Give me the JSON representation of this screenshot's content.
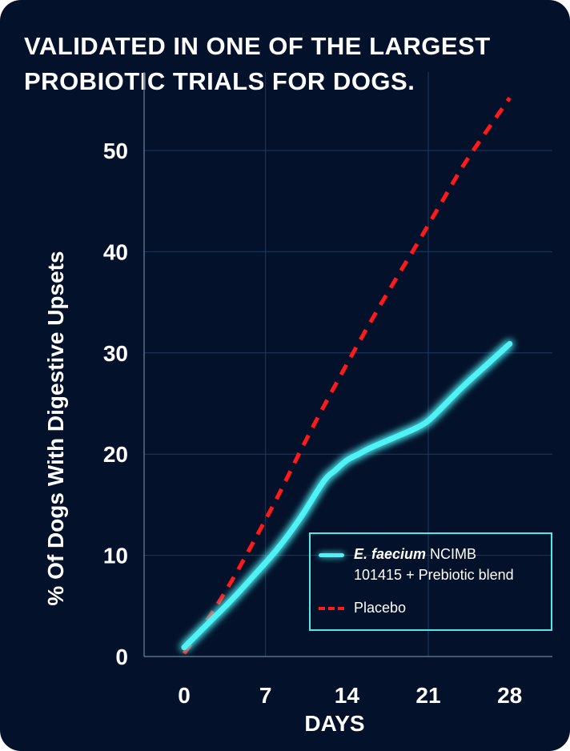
{
  "page": {
    "title_line1": "VALIDATED IN ONE OF THE LARGEST",
    "title_line2": "PROBIOTIC TRIALS FOR DOGS."
  },
  "colors": {
    "background": "#04112a",
    "probiotic_line": "#4ff2f5",
    "placebo_line": "#ff1a1a",
    "grid": "#1e3a5e",
    "legend_border": "#4fe9ec"
  },
  "legend": {
    "items": [
      {
        "italic": "E. faecium",
        "line1_rest": " NCIMB",
        "line2": "101415 + Prebiotic blend",
        "style": "solid"
      },
      {
        "line1": "Placebo",
        "style": "dashed"
      }
    ]
  },
  "chart_data": {
    "type": "line",
    "xlabel": "DAYS",
    "ylabel": "%  Of Dogs With Digestive Upsets",
    "x_ticks": [
      0,
      7,
      14,
      21,
      28
    ],
    "y_ticks": [
      0,
      10,
      20,
      30,
      40,
      50
    ],
    "y_tick_labels": [
      "0",
      "10",
      "20",
      "30",
      "40",
      "50"
    ],
    "xlim": [
      -2,
      29.5
    ],
    "ylim": [
      0,
      57
    ],
    "grid": true,
    "legend_position": "bottom-right",
    "series": [
      {
        "name": "E. faecium NCIMB 101415 + Prebiotic blend",
        "style": "solid",
        "x": [
          0,
          2,
          4,
          6,
          8,
          10,
          12,
          13,
          14,
          15,
          16,
          18,
          20,
          21,
          22,
          24,
          26,
          28
        ],
        "y": [
          0.9,
          3.2,
          5.5,
          8,
          10.6,
          13.7,
          17.3,
          18.4,
          19.4,
          20.0,
          20.6,
          21.6,
          22.6,
          23.3,
          24.4,
          26.7,
          28.8,
          30.9
        ]
      },
      {
        "name": "Placebo",
        "style": "dashed",
        "x": [
          0,
          2,
          4,
          6,
          8,
          10,
          12,
          14,
          16,
          18,
          20,
          22,
          24,
          26,
          28
        ],
        "y": [
          0.3,
          3.6,
          7.3,
          11.4,
          15.7,
          20.3,
          24.7,
          28.9,
          33.0,
          36.9,
          40.7,
          44.6,
          48.5,
          51.9,
          55.2
        ]
      }
    ]
  }
}
